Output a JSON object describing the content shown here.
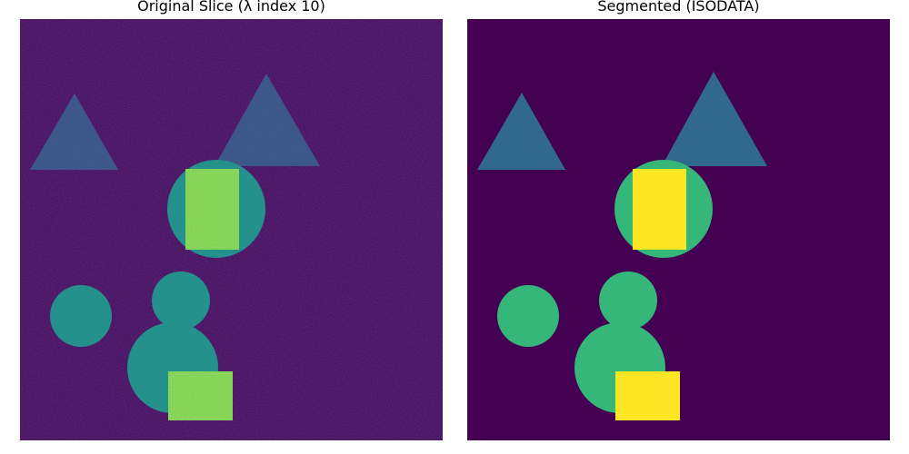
{
  "panels": [
    {
      "title": "Original Slice (λ index 10)"
    },
    {
      "title": "Segmented (ISODATA)"
    }
  ],
  "colors": {
    "background_dark": "#440154",
    "original_bg": "#45135f",
    "triangle": "#31688e",
    "circle_original": "#24918c",
    "rect_original": "#7ad151",
    "circle_segmented": "#35b779",
    "rect_segmented": "#fde725"
  },
  "colormap": "viridis"
}
